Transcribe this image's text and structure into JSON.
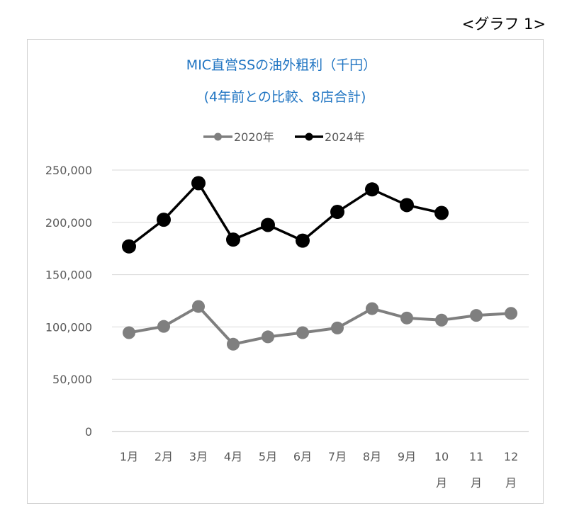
{
  "caption": "<グラフ 1>",
  "chart_data": {
    "type": "line",
    "title": "MIC直営SSの油外粗利（千円）",
    "subtitle": "(4年前との比較、8店合計)",
    "categories": [
      "1月",
      "2月",
      "3月",
      "4月",
      "5月",
      "6月",
      "7月",
      "8月",
      "9月",
      "10月",
      "11月",
      "12月"
    ],
    "series": [
      {
        "name": "2020年",
        "color": "#7f7f7f",
        "values": [
          94500,
          100500,
          119500,
          83500,
          90500,
          94500,
          99000,
          117500,
          108500,
          106500,
          111000,
          113000
        ]
      },
      {
        "name": "2024年",
        "color": "#000000",
        "values": [
          177000,
          202500,
          237500,
          183500,
          197500,
          182500,
          210000,
          231500,
          216500,
          209000,
          null,
          null
        ]
      }
    ],
    "ylim": [
      0,
      250000
    ],
    "yticks": [
      "0",
      "50,000",
      "100,000",
      "150,000",
      "200,000",
      "250,000"
    ],
    "grid": true,
    "legend_position": "top"
  }
}
